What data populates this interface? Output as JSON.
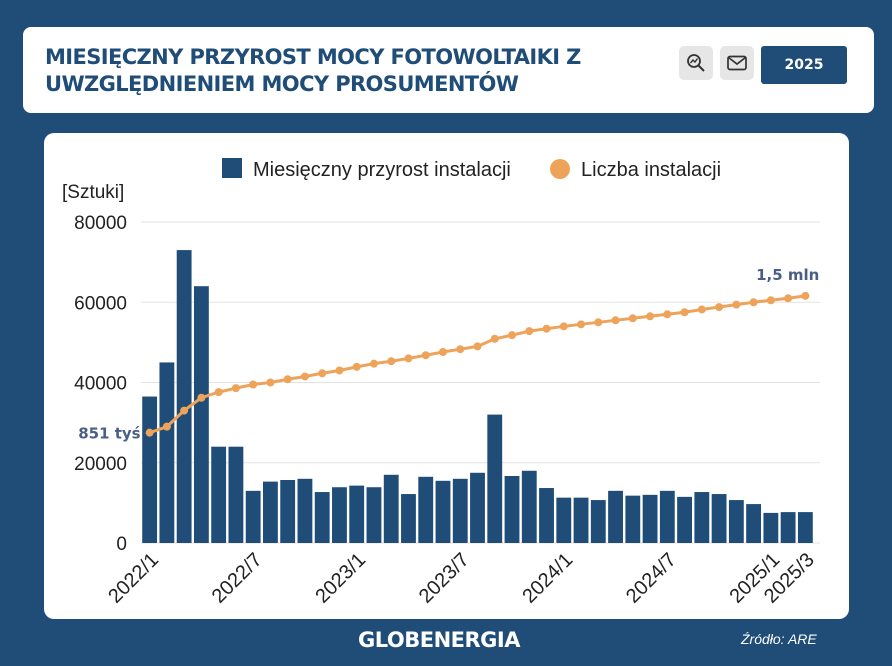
{
  "header": {
    "title": "MIESIĘCZNY PRZYROST MOCY FOTOWOLTAIKI Z UWZGLĘDNIENIEM MOCY PROSUMENTÓW",
    "year_label": "2025"
  },
  "footer": {
    "brand": "GLOBENERGIA",
    "source": "Źródło: ARE"
  },
  "colors": {
    "background": "#1f4d78",
    "bar": "#1f4d78",
    "line": "#eda35a",
    "annotation": "#4a5f85"
  },
  "chart_data": {
    "type": "bar+line",
    "ylabel": "[Sztuki]",
    "ylim": [
      0,
      80000
    ],
    "yticks": [
      0,
      20000,
      40000,
      60000,
      80000
    ],
    "x_tick_labels": [
      "2022/1",
      "2022/7",
      "2023/1",
      "2023/7",
      "2024/1",
      "2024/7",
      "2025/1",
      "2025/3"
    ],
    "categories": [
      "2022/1",
      "2022/2",
      "2022/3",
      "2022/4",
      "2022/5",
      "2022/6",
      "2022/7",
      "2022/8",
      "2022/9",
      "2022/10",
      "2022/11",
      "2022/12",
      "2023/1",
      "2023/2",
      "2023/3",
      "2023/4",
      "2023/5",
      "2023/6",
      "2023/7",
      "2023/8",
      "2023/9",
      "2023/10",
      "2023/11",
      "2023/12",
      "2024/1",
      "2024/2",
      "2024/3",
      "2024/4",
      "2024/5",
      "2024/6",
      "2024/7",
      "2024/8",
      "2024/9",
      "2024/10",
      "2024/11",
      "2024/12",
      "2025/1",
      "2025/2",
      "2025/3"
    ],
    "series": [
      {
        "name": "Miesięczny przyrost instalacji",
        "type": "bar",
        "values": [
          36500,
          45000,
          73000,
          64000,
          24000,
          24000,
          13000,
          15300,
          15700,
          16000,
          12700,
          13900,
          14300,
          13900,
          17000,
          12200,
          16500,
          15500,
          16000,
          17500,
          32000,
          16700,
          18000,
          13700,
          11300,
          11300,
          10700,
          13000,
          11800,
          12000,
          13000,
          11500,
          12700,
          12200,
          10700,
          9700,
          7500,
          7700,
          7700
        ]
      },
      {
        "name": "Liczba instalacji",
        "type": "line",
        "values": [
          27500,
          29000,
          33000,
          36200,
          37600,
          38600,
          39500,
          40000,
          40800,
          41500,
          42300,
          43000,
          43900,
          44700,
          45300,
          46000,
          46800,
          47600,
          48300,
          49000,
          50900,
          51800,
          52800,
          53400,
          54000,
          54500,
          55000,
          55500,
          56000,
          56500,
          57000,
          57500,
          58200,
          58800,
          59400,
          60000,
          60500,
          61000,
          61600
        ]
      }
    ],
    "annotations": [
      {
        "text": "851 tyś",
        "at": "2022/1"
      },
      {
        "text": "1,5 mln",
        "at": "2025/3"
      }
    ]
  }
}
